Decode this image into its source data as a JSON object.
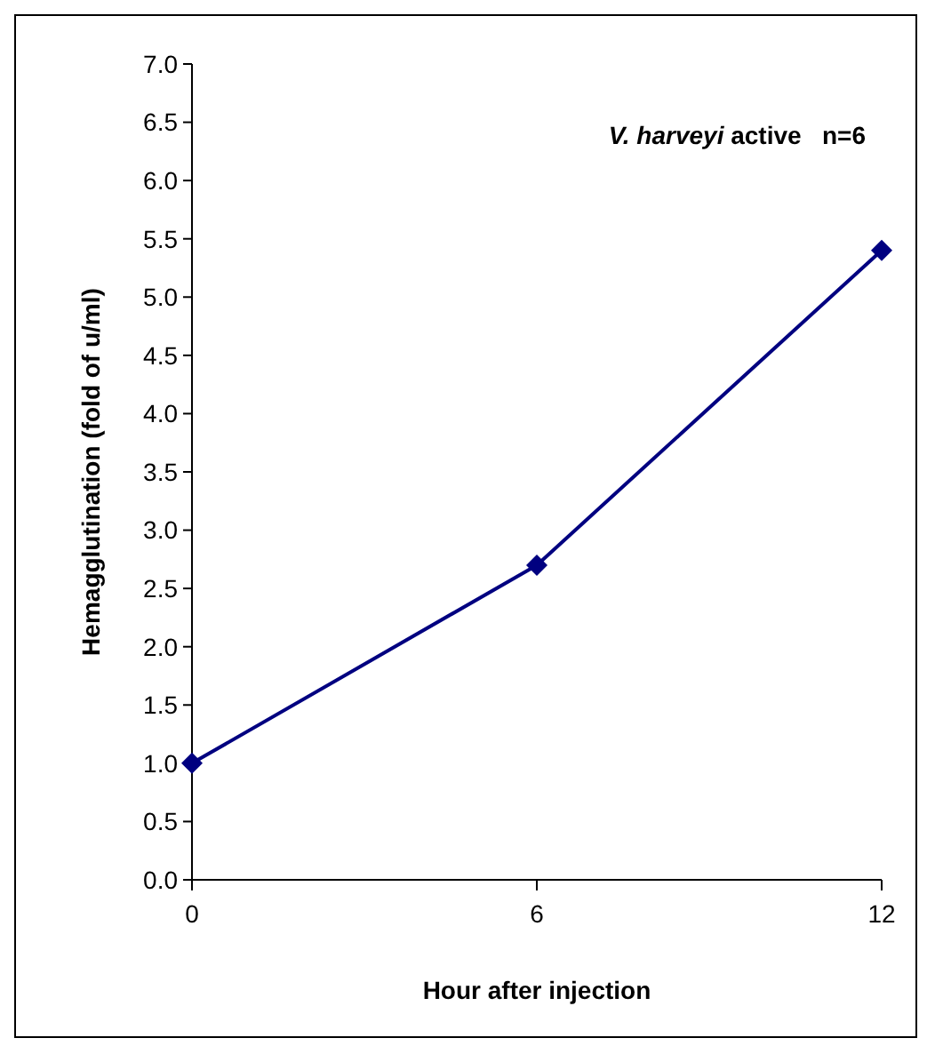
{
  "chart_data": {
    "type": "line",
    "xlabel": "Hour after injection",
    "ylabel": "Hemagglutination (fold of u/ml)",
    "annotations": [
      "V. harveyi active   n=6"
    ],
    "x": [
      0,
      6,
      12
    ],
    "series": [
      {
        "color": "#000080",
        "values": [
          1.0,
          2.7,
          5.4
        ]
      }
    ],
    "xlim": [
      0,
      12
    ],
    "xticks": [
      0,
      6,
      12
    ],
    "ylim": [
      0,
      7
    ],
    "yticks": [
      {
        "value": 0,
        "label": "0.0"
      },
      {
        "value": 0.5,
        "label": "0.5"
      },
      {
        "value": 1,
        "label": "1.0"
      },
      {
        "value": 1.5,
        "label": "1.5"
      },
      {
        "value": 2,
        "label": "2.0"
      },
      {
        "value": 2.5,
        "label": "2.5"
      },
      {
        "value": 3,
        "label": "3.0"
      },
      {
        "value": 3.5,
        "label": "3.5"
      },
      {
        "value": 4,
        "label": "4.0"
      },
      {
        "value": 4.5,
        "label": "4.5"
      },
      {
        "value": 5,
        "label": "5.0"
      },
      {
        "value": 5.5,
        "label": "5.5"
      },
      {
        "value": 6,
        "label": "6.0"
      },
      {
        "value": 6.5,
        "label": "6.5"
      },
      {
        "value": 7,
        "label": "7.0"
      }
    ],
    "grid": false,
    "marker": "diamond",
    "line_style": "solid"
  }
}
